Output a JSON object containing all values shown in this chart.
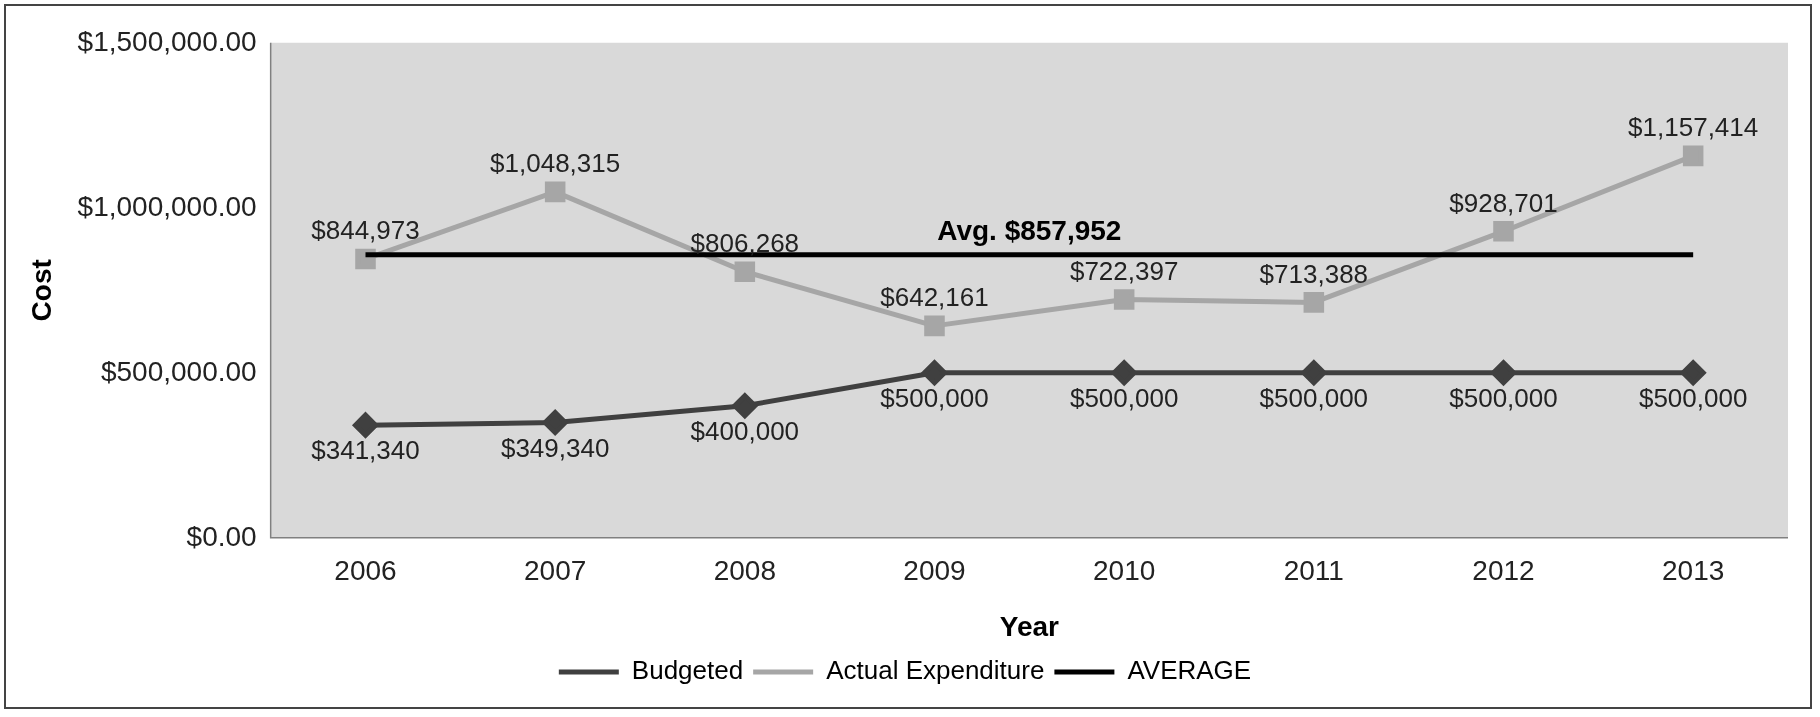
{
  "chart_data": {
    "type": "line",
    "xlabel": "Year",
    "ylabel": "Cost",
    "categories": [
      "2006",
      "2007",
      "2008",
      "2009",
      "2010",
      "2011",
      "2012",
      "2013"
    ],
    "series": [
      {
        "name": "Budgeted",
        "color": "#404040",
        "marker": "diamond",
        "values": [
          341340,
          349340,
          400000,
          500000,
          500000,
          500000,
          500000,
          500000
        ],
        "value_labels": [
          "$341,340",
          "$349,340",
          "$400,000",
          "$500,000",
          "$500,000",
          "$500,000",
          "$500,000",
          "$500,000"
        ]
      },
      {
        "name": "Actual Expenditure",
        "color": "#a6a6a6",
        "marker": "square",
        "values": [
          844973,
          1048315,
          806268,
          642161,
          722397,
          713388,
          928701,
          1157414
        ],
        "value_labels": [
          "$844,973",
          "$1,048,315",
          "$806,268",
          "$642,161",
          "$722,397",
          "$713,388",
          "$928,701",
          "$1,157,414"
        ]
      },
      {
        "name": "AVERAGE",
        "color": "#000000",
        "marker": "none",
        "values": [
          857952,
          857952,
          857952,
          857952,
          857952,
          857952,
          857952,
          857952
        ]
      }
    ],
    "annotations": [
      {
        "text": "Avg. $857,952",
        "y": 857952
      }
    ],
    "ylim": [
      0,
      1500000
    ],
    "yticks": [
      {
        "value": 0,
        "label": "$0.00"
      },
      {
        "value": 500000,
        "label": "$500,000.00"
      },
      {
        "value": 1000000,
        "label": "$1,000,000.00"
      },
      {
        "value": 1500000,
        "label": "$1,500,000.00"
      }
    ],
    "grid": false,
    "legend": "bottom",
    "line_style": "solid"
  }
}
